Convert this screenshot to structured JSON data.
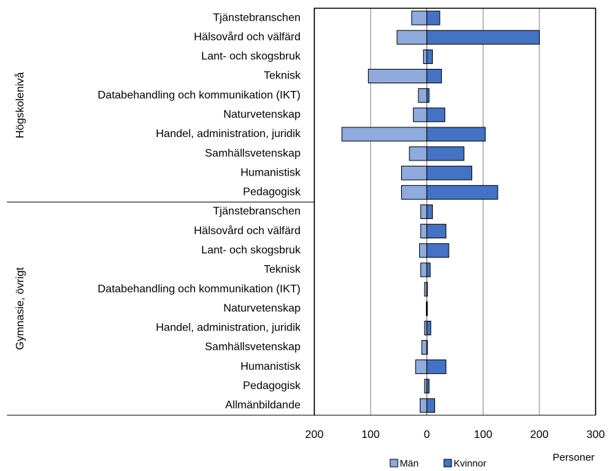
{
  "chart_data": {
    "type": "bar",
    "orientation": "horizontal",
    "groups": [
      {
        "name": "Högskolenivå",
        "categories": [
          "Tjänstebranschen",
          "Hälsovård och välfärd",
          "Lant- och skogsbruk",
          "Teknisk",
          "Databehandling och kommunikation (IKT)",
          "Naturvetenskap",
          "Handel, administration, juridik",
          "Samhällsvetenskap",
          "Humanistisk",
          "Pedagogisk"
        ]
      },
      {
        "name": "Gymnasie, övrigt",
        "categories": [
          "Tjänstebranschen",
          "Hälsovård och välfärd",
          "Lant- och skogsbruk",
          "Teknisk",
          "Databehandling och kommunikation (IKT)",
          "Naturvetenskap",
          "Handel, administration, juridik",
          "Samhällsvetenskap",
          "Humanistisk",
          "Pedagogisk",
          "Allmänbildande"
        ]
      }
    ],
    "series": [
      {
        "name": "Män",
        "color": "#8faadc",
        "values": [
          -27,
          -53,
          -6,
          -104,
          -15,
          -24,
          -151,
          -31,
          -45,
          -45,
          -11,
          -11,
          -13,
          -11,
          -4,
          -1,
          -4,
          -9,
          -20,
          -4,
          -12
        ]
      },
      {
        "name": "Kvinnor",
        "color": "#4472c4",
        "values": [
          23,
          200,
          10,
          26,
          4,
          32,
          104,
          66,
          80,
          126,
          10,
          34,
          39,
          6,
          1,
          1,
          7,
          1,
          34,
          4,
          14
        ]
      }
    ],
    "xlabel": "Personer",
    "xlim": [
      -200,
      300
    ],
    "xticks": [
      {
        "value": -200,
        "label": "200"
      },
      {
        "value": -100,
        "label": "100"
      },
      0,
      100,
      200,
      300
    ],
    "grid": true
  }
}
